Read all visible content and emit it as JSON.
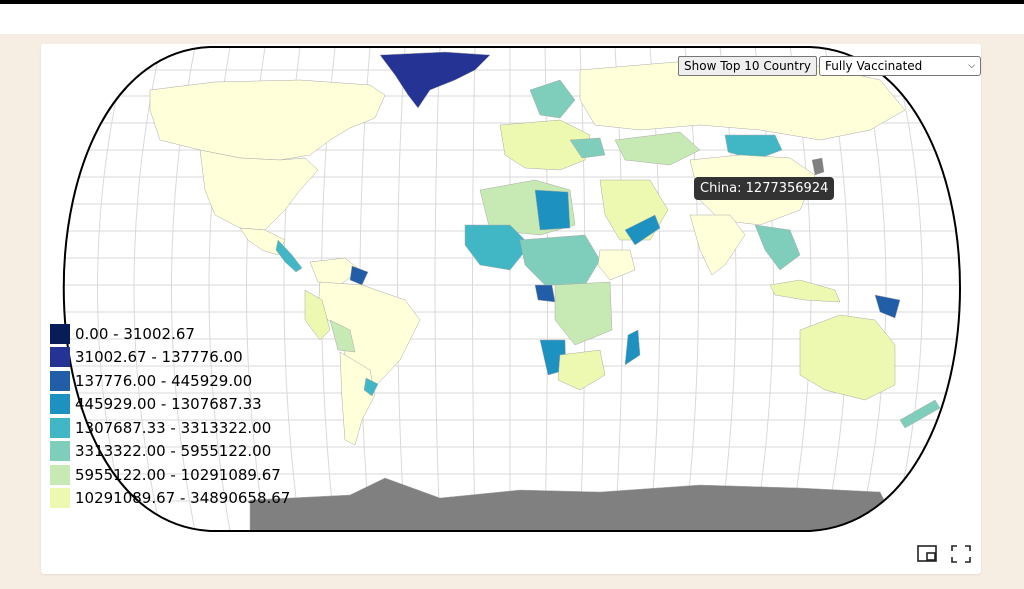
{
  "controls": {
    "top10_label": "Show Top 10 Country",
    "metric_selected": "Fully Vaccinated"
  },
  "tooltip": {
    "text": "China: 1277356924"
  },
  "legend": [
    {
      "label": "0.00 - 31002.67",
      "color": "#081d58"
    },
    {
      "label": "31002.67 - 137776.00",
      "color": "#253494"
    },
    {
      "label": "137776.00 - 445929.00",
      "color": "#225ea8"
    },
    {
      "label": "445929.00 - 1307687.33",
      "color": "#1d91c0"
    },
    {
      "label": "1307687.33 - 3313322.00",
      "color": "#41b6c4"
    },
    {
      "label": "3313322.00 - 5955122.00",
      "color": "#7fcdbb"
    },
    {
      "label": "5955122.00 - 10291089.67",
      "color": "#c7e9b4"
    },
    {
      "label": "10291089.67 - 34890658.67",
      "color": "#edf8b1"
    }
  ],
  "colors": {
    "no_data": "#808080",
    "highest": "#ffffd9"
  },
  "icons": {
    "pip": "picture-in-picture-icon",
    "fullscreen": "fullscreen-icon"
  }
}
